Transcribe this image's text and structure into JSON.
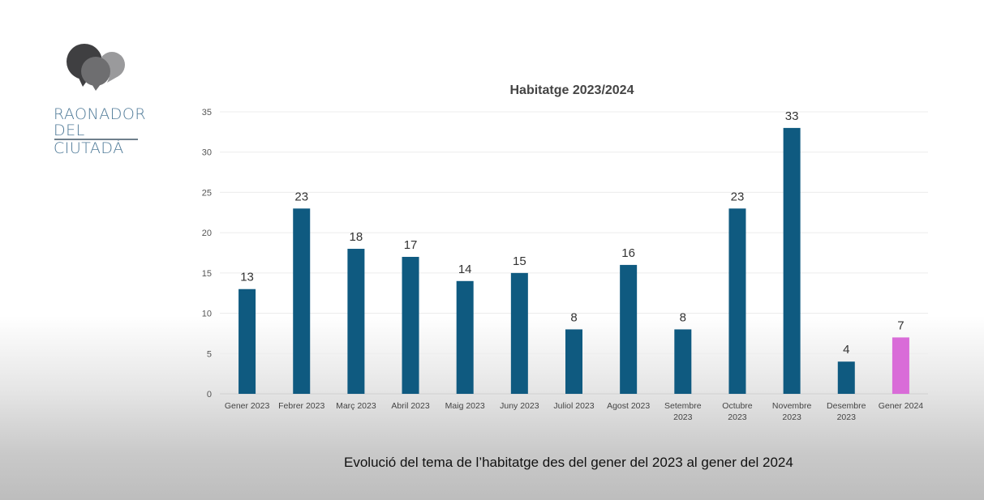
{
  "logo": {
    "line1": "RAONADOR",
    "line2": "DEL CIUTADÀ"
  },
  "caption": "Evolució del tema de l’habitatge des del gener del 2023 al gener del 2024",
  "chart_data": {
    "type": "bar",
    "title": "Habitatge 2023/2024",
    "xlabel": "",
    "ylabel": "",
    "ylim": [
      0,
      35
    ],
    "yticks": [
      0,
      5,
      10,
      15,
      20,
      25,
      30,
      35
    ],
    "grid": true,
    "categories": [
      [
        "Gener 2023"
      ],
      [
        "Febrer 2023"
      ],
      [
        "Març 2023"
      ],
      [
        "Abril 2023"
      ],
      [
        "Maig 2023"
      ],
      [
        "Juny 2023"
      ],
      [
        "Juliol 2023"
      ],
      [
        "Agost 2023"
      ],
      [
        "Setembre",
        "2023"
      ],
      [
        "Octubre",
        "2023"
      ],
      [
        "Novembre",
        "2023"
      ],
      [
        "Desembre",
        "2023"
      ],
      [
        "Gener 2024"
      ]
    ],
    "values": [
      13,
      23,
      18,
      17,
      14,
      15,
      8,
      16,
      8,
      23,
      33,
      4,
      7
    ],
    "colors": {
      "default": "#0f5a80",
      "highlight": "#d96cd8"
    },
    "highlight_index": 12
  }
}
